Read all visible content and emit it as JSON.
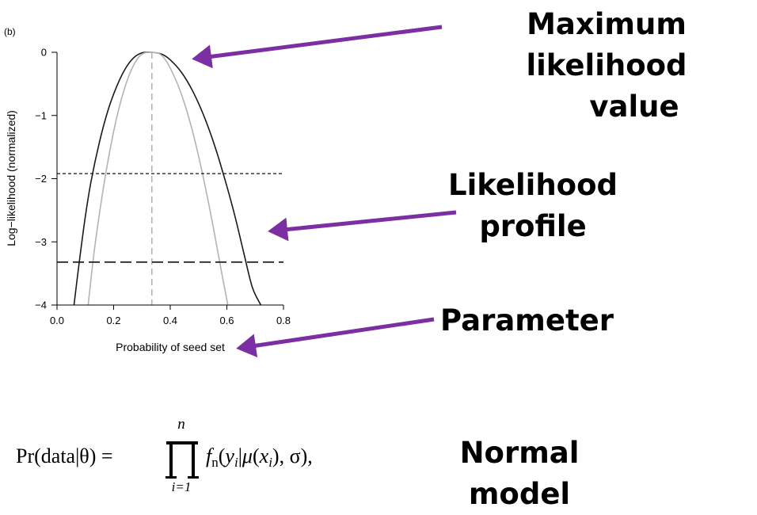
{
  "panel_label": "(b)",
  "chart_data": {
    "type": "line",
    "xlabel": "Probability of seed set",
    "ylabel": "Log−likelihood (normalized)",
    "xlim": [
      0.0,
      0.8
    ],
    "ylim": [
      -4,
      0
    ],
    "x_ticks": [
      "0.0",
      "0.2",
      "0.4",
      "0.6",
      "0.8"
    ],
    "y_ticks": [
      "0",
      "−1",
      "−2",
      "−3",
      "−4"
    ],
    "grid": false,
    "series": [
      {
        "style": "solid",
        "color": "#1a1a1a",
        "x": [
          0.06,
          0.08,
          0.1,
          0.12,
          0.15,
          0.18,
          0.21,
          0.24,
          0.27,
          0.3,
          0.335,
          0.37,
          0.4,
          0.44,
          0.48,
          0.52,
          0.56,
          0.6,
          0.63,
          0.66,
          0.69,
          0.72
        ],
        "y": [
          -4.0,
          -3.27,
          -2.6,
          -2.05,
          -1.42,
          -0.92,
          -0.55,
          -0.27,
          -0.09,
          -0.01,
          0.0,
          -0.03,
          -0.12,
          -0.32,
          -0.62,
          -1.02,
          -1.52,
          -2.12,
          -2.62,
          -3.18,
          -3.72,
          -4.0
        ]
      },
      {
        "style": "solid",
        "color": "#b3b3b3",
        "x": [
          0.11,
          0.13,
          0.15,
          0.17,
          0.19,
          0.21,
          0.23,
          0.25,
          0.27,
          0.29,
          0.31,
          0.335,
          0.36,
          0.38,
          0.4,
          0.43,
          0.46,
          0.49,
          0.52,
          0.55,
          0.58,
          0.61,
          0.625
        ],
        "y": [
          -4.0,
          -3.2,
          -2.55,
          -1.98,
          -1.48,
          -1.05,
          -0.7,
          -0.42,
          -0.21,
          -0.07,
          -0.01,
          0.0,
          -0.02,
          -0.1,
          -0.25,
          -0.55,
          -0.95,
          -1.45,
          -2.05,
          -2.72,
          -3.45,
          -4.15,
          -4.5
        ]
      }
    ],
    "vertical_reference": {
      "x": 0.335,
      "style": "dashed",
      "color": "#b3b3b3"
    },
    "horizontal_references": [
      {
        "y": -1.92,
        "style": "short-dashed",
        "color": "#111111"
      },
      {
        "y": -3.32,
        "style": "long-dashed",
        "color": "#111111"
      }
    ]
  },
  "annotations": {
    "max_likelihood": {
      "line1": "Maximum likelihood",
      "line2": "value"
    },
    "likelihood_profile": {
      "line1": "Likelihood",
      "line2": "profile"
    },
    "parameter": "Parameter",
    "normal_model": "Normal model"
  },
  "arrow_color": "#7b2fa3",
  "formula": {
    "lhs": "Pr(data|θ) =",
    "upper": "n",
    "lower": "i=1",
    "f": "f",
    "n_sub": "n",
    "paren_open": "(",
    "y": "y",
    "i": "i",
    "bar": "|",
    "mu": "μ",
    "x": "x",
    "sigma": "σ",
    "tail": "),",
    "comma": ", "
  }
}
